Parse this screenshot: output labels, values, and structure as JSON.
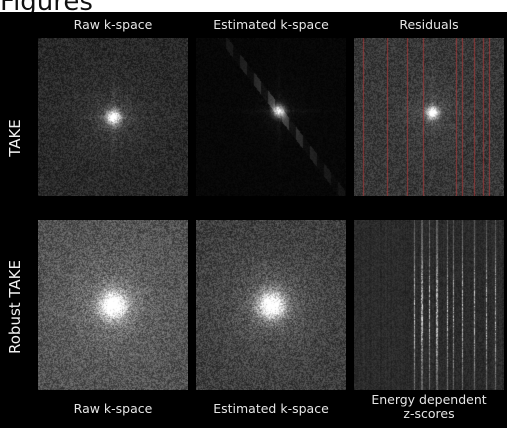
{
  "heading": "Figures",
  "top_labels": [
    "Raw k-space",
    "Estimated k-space",
    "Residuals"
  ],
  "bottom_labels": [
    "Raw k-space",
    "Estimated k-space",
    "Energy dependent\nz-scores"
  ],
  "row_labels": [
    "TAKE",
    "Robust TAKE"
  ],
  "colors": {
    "background": "#000000",
    "residual_lines": "#b33a3a",
    "label_text": "#e6e6e6"
  }
}
